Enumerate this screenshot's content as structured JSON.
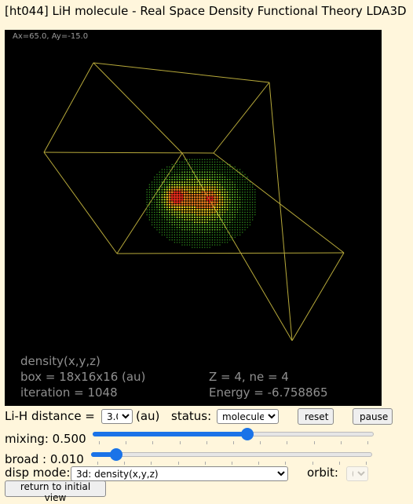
{
  "title": "[ht044] LiH molecule - Real Space Density Functional Theory LDA3D",
  "viewport": {
    "angle_readout": "Ax=65.0, Ay=-15.0",
    "mode_label": "density(x,y,z)",
    "box": "box = 18x16x16 (au)",
    "iteration": "iteration = 1048",
    "z_ne": "Z = 4,  ne = 4",
    "energy": "Energy = -6.758865",
    "box_color": "#b7a93a"
  },
  "controls": {
    "distance_label": "Li-H distance =",
    "distance_value": "3.0",
    "distance_unit": "(au)",
    "status_label": "status:",
    "status_value": "molecule",
    "reset_label": "reset",
    "pause_label": "pause",
    "mixing_label": "mixing: 0.500",
    "mixing_fraction": 0.55,
    "broad_label": "broad : 0.010",
    "broad_fraction": 0.09,
    "disp_mode_label": "disp mode:",
    "disp_mode_value": "3d: density(x,y,z)",
    "orbit_label": "orbit:",
    "orbit_value": "0",
    "return_label": "return to initial view"
  }
}
